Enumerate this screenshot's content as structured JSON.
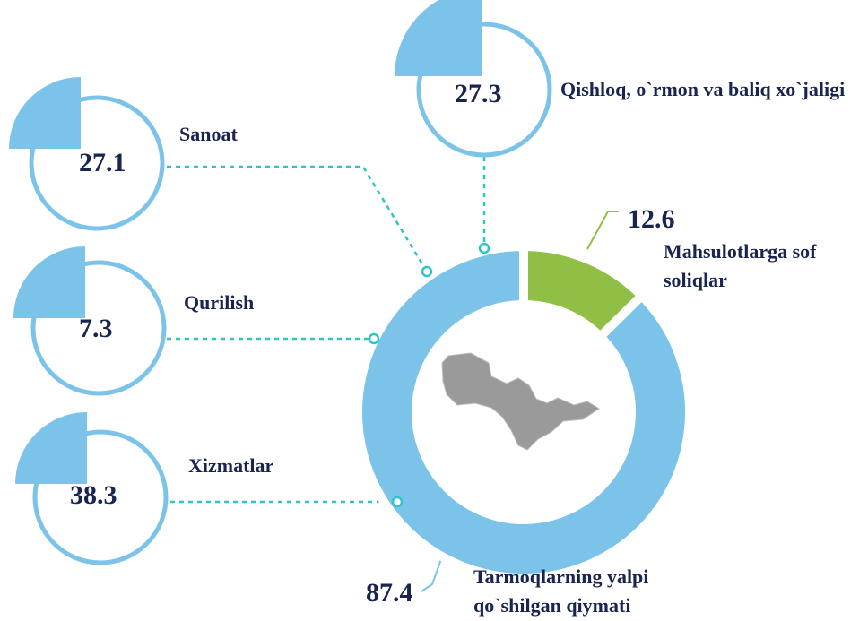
{
  "chart_data": {
    "type": "pie",
    "donut": true,
    "categories": [
      "Tarmoqlarning yalpi qo`shilgan qiymati",
      "Mahsulotlarga sof soliqlar"
    ],
    "values": [
      87.4,
      12.6
    ],
    "colors": [
      "#7cc3ea",
      "#8fbf45"
    ],
    "breakdown": {
      "categories": [
        "Qishloq, o`rmon va baliq xo`jaligi",
        "Sanoat",
        "Qurilish",
        "Xizmatlar"
      ],
      "values": [
        27.3,
        27.1,
        7.3,
        38.3
      ],
      "color": "#7cc3ea"
    }
  }
}
